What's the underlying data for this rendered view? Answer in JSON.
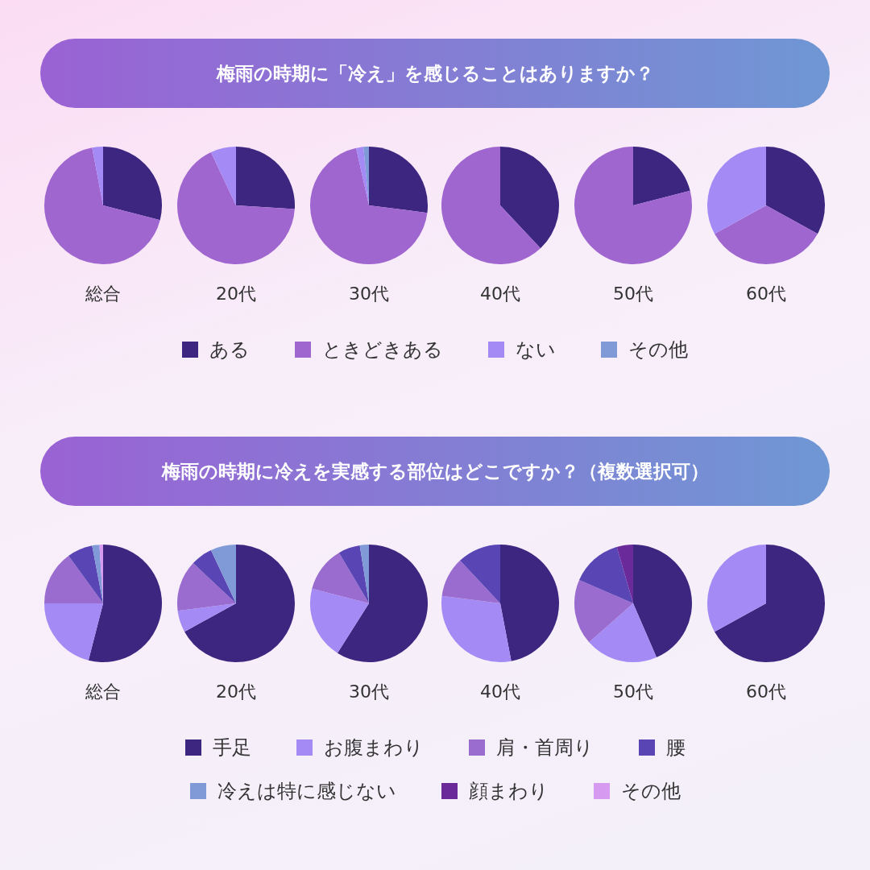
{
  "chart_data": [
    {
      "type": "pie",
      "title": "梅雨の時期に「冷え」を感じることはありますか？",
      "xlabel": "総合",
      "legend": "bottom",
      "categories": [
        "ある",
        "ときどきある",
        "ない",
        "その他"
      ],
      "values": [
        29,
        68,
        3,
        0
      ],
      "colors": [
        "#3d2680",
        "#a066d0",
        "#a38af5",
        "#7f9ad6"
      ]
    },
    {
      "type": "pie",
      "xlabel": "20代",
      "categories": [
        null,
        null,
        null,
        null
      ],
      "values": [
        26,
        67,
        7,
        0
      ],
      "colors": [
        "#3d2680",
        "#a066d0",
        "#a38af5",
        "#7f9ad6"
      ]
    },
    {
      "type": "pie",
      "xlabel": "30代",
      "categories": [
        null,
        null,
        null,
        null
      ],
      "values": [
        27,
        69.5,
        2,
        1.5
      ],
      "colors": [
        "#3d2680",
        "#a066d0",
        "#a38af5",
        "#7f9ad6"
      ]
    },
    {
      "type": "pie",
      "xlabel": "40代",
      "categories": [
        null,
        null,
        null,
        null
      ],
      "values": [
        38,
        62,
        0,
        0
      ],
      "colors": [
        "#3d2680",
        "#a066d0",
        "#a38af5",
        "#7f9ad6"
      ]
    },
    {
      "type": "pie",
      "xlabel": "50代",
      "categories": [
        null,
        null,
        null,
        null
      ],
      "values": [
        21,
        79,
        0,
        0
      ],
      "colors": [
        "#3d2680",
        "#a066d0",
        "#a38af5",
        "#7f9ad6"
      ]
    },
    {
      "type": "pie",
      "xlabel": "60代",
      "categories": [
        null,
        null,
        null,
        null
      ],
      "values": [
        33,
        34,
        33,
        0
      ],
      "colors": [
        "#3d2680",
        "#a066d0",
        "#a38af5",
        "#7f9ad6"
      ]
    },
    {
      "type": "pie",
      "title": "梅雨の時期に冷えを実感する部位はどこですか？（複数選択可）",
      "xlabel": "総合",
      "legend": "bottom",
      "categories": [
        "手足",
        "お腹まわり",
        "肩・首周り",
        "腰",
        "冷えは特に感じない",
        "顔まわり",
        "その他"
      ],
      "values": [
        54,
        21,
        15,
        7,
        2,
        0,
        1
      ],
      "colors": [
        "#3d2680",
        "#a38af5",
        "#9b6ccf",
        "#5a45b5",
        "#7f9ad6",
        "#6b2a9a",
        "#d69af0"
      ]
    },
    {
      "type": "pie",
      "xlabel": "20代",
      "categories": [
        null,
        null,
        null,
        null,
        null,
        null,
        null
      ],
      "values": [
        67,
        6,
        14,
        6,
        7,
        0,
        0
      ],
      "colors": [
        "#3d2680",
        "#a38af5",
        "#9b6ccf",
        "#5a45b5",
        "#7f9ad6",
        "#6b2a9a",
        "#d69af0"
      ]
    },
    {
      "type": "pie",
      "xlabel": "30代",
      "categories": [
        null,
        null,
        null,
        null,
        null,
        null,
        null
      ],
      "values": [
        59,
        20,
        12.5,
        6,
        2.5,
        0,
        0
      ],
      "colors": [
        "#3d2680",
        "#a38af5",
        "#9b6ccf",
        "#5a45b5",
        "#7f9ad6",
        "#6b2a9a",
        "#d69af0"
      ]
    },
    {
      "type": "pie",
      "xlabel": "40代",
      "categories": [
        null,
        null,
        null,
        null,
        null,
        null,
        null
      ],
      "values": [
        47,
        30,
        11,
        12,
        0,
        0,
        0
      ],
      "colors": [
        "#3d2680",
        "#a38af5",
        "#9b6ccf",
        "#5a45b5",
        "#7f9ad6",
        "#6b2a9a",
        "#d69af0"
      ]
    },
    {
      "type": "pie",
      "xlabel": "50代",
      "categories": [
        null,
        null,
        null,
        null,
        null,
        null,
        null
      ],
      "values": [
        43.5,
        20,
        18,
        14,
        0,
        4.5,
        0
      ],
      "colors": [
        "#3d2680",
        "#a38af5",
        "#9b6ccf",
        "#5a45b5",
        "#7f9ad6",
        "#6b2a9a",
        "#d69af0"
      ]
    },
    {
      "type": "pie",
      "xlabel": "60代",
      "categories": [
        null,
        null,
        null,
        null,
        null,
        null,
        null
      ],
      "values": [
        67,
        33,
        0,
        0,
        0,
        0,
        0
      ],
      "colors": [
        "#3d2680",
        "#a38af5",
        "#9b6ccf",
        "#5a45b5",
        "#7f9ad6",
        "#6b2a9a",
        "#d69af0"
      ]
    }
  ]
}
